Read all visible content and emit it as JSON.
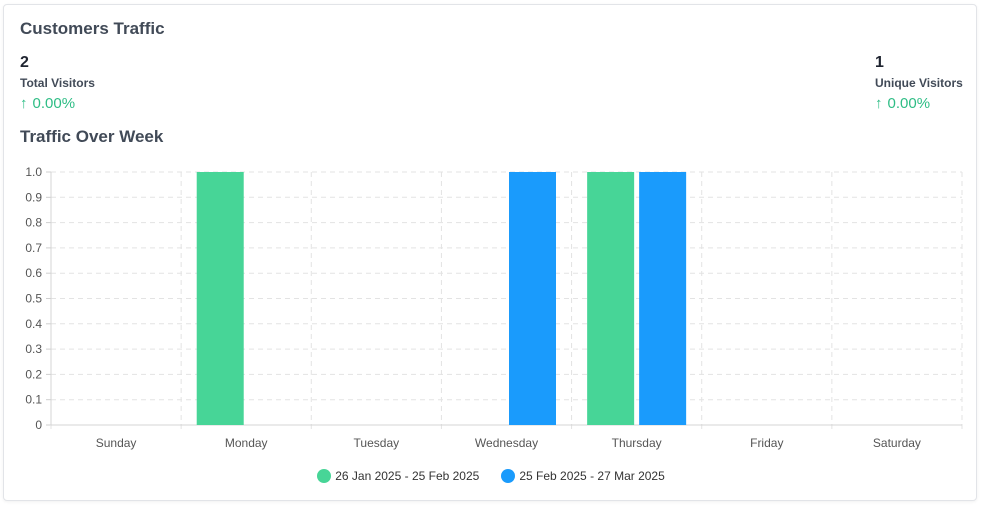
{
  "header": {
    "title": "Customers Traffic"
  },
  "stats": {
    "total": {
      "value": "2",
      "label": "Total Visitors",
      "change": "0.00%",
      "arrow": "↑"
    },
    "unique": {
      "value": "1",
      "label": "Unique Visitors",
      "change": "0.00%",
      "arrow": "↑"
    }
  },
  "colors": {
    "positive": "#2ebd85",
    "series1": "#47d597",
    "series2": "#1a9bfc"
  },
  "chart_title": "Traffic Over Week",
  "chart_data": {
    "type": "bar",
    "categories": [
      "Sunday",
      "Monday",
      "Tuesday",
      "Wednesday",
      "Thursday",
      "Friday",
      "Saturday"
    ],
    "series": [
      {
        "name": "26 Jan 2025 - 25 Feb 2025",
        "color": "#47d597",
        "values": [
          0,
          1,
          0,
          0,
          1,
          0,
          0
        ]
      },
      {
        "name": "25 Feb 2025 - 27 Mar 2025",
        "color": "#1a9bfc",
        "values": [
          0,
          0,
          0,
          1,
          1,
          0,
          0
        ]
      }
    ],
    "ylim": [
      0,
      1
    ],
    "yticks": [
      "0",
      "0.1",
      "0.2",
      "0.3",
      "0.4",
      "0.5",
      "0.6",
      "0.7",
      "0.8",
      "0.9",
      "1.0"
    ],
    "grid": true,
    "legend": "bottom-center"
  }
}
